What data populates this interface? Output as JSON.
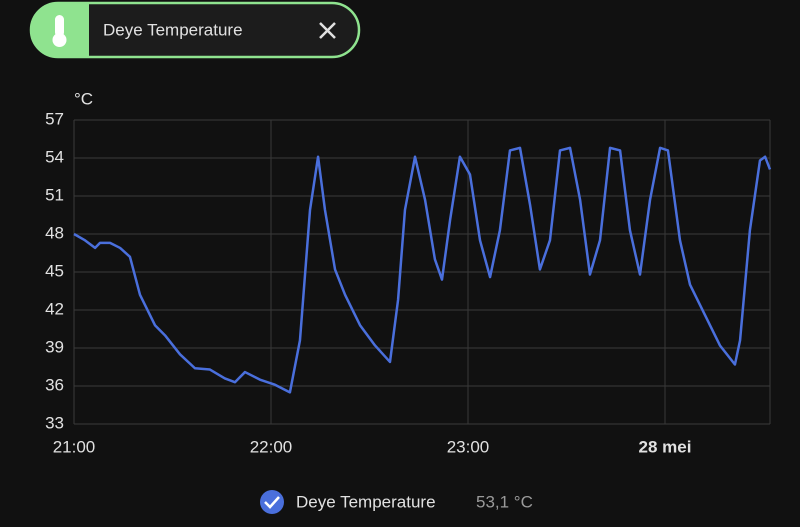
{
  "chip": {
    "label": "Deye Temperature"
  },
  "chart_data": {
    "type": "line",
    "y_label": "°C",
    "x": [
      21.0,
      21.056,
      21.107,
      21.132,
      21.183,
      21.234,
      21.284,
      21.335,
      21.411,
      21.462,
      21.538,
      21.614,
      21.69,
      21.766,
      21.817,
      21.868,
      21.944,
      22.02,
      22.096,
      22.147,
      22.198,
      22.239,
      22.274,
      22.325,
      22.376,
      22.452,
      22.528,
      22.604,
      22.645,
      22.68,
      22.731,
      22.782,
      22.832,
      22.868,
      22.909,
      22.959,
      23.01,
      23.061,
      23.112,
      23.162,
      23.213,
      23.264,
      23.315,
      23.365,
      23.416,
      23.467,
      23.518,
      23.569,
      23.619,
      23.67,
      23.721,
      23.772,
      23.822,
      23.873,
      23.924,
      23.975,
      24.015,
      24.076,
      24.127,
      24.203,
      24.279,
      24.355,
      24.381,
      24.431,
      24.482,
      24.508,
      24.533
    ],
    "series": [
      {
        "name": "Deye Temperature",
        "color": "#4a6fdc",
        "current_value": "53,1 °C",
        "values": [
          48.0,
          47.5,
          46.9,
          47.3,
          47.3,
          46.9,
          46.2,
          43.2,
          40.8,
          40.0,
          38.5,
          37.4,
          37.3,
          36.6,
          36.3,
          37.1,
          36.5,
          36.1,
          35.5,
          39.6,
          49.9,
          54.1,
          49.9,
          45.2,
          43.2,
          40.8,
          39.2,
          37.9,
          42.8,
          49.9,
          54.1,
          50.7,
          46.0,
          44.4,
          49.1,
          54.1,
          52.7,
          47.5,
          44.6,
          48.3,
          54.6,
          54.8,
          50.3,
          45.2,
          47.5,
          54.6,
          54.8,
          50.7,
          44.8,
          47.5,
          54.8,
          54.6,
          48.3,
          44.8,
          50.7,
          54.8,
          54.6,
          47.5,
          44.0,
          41.6,
          39.2,
          37.7,
          39.6,
          48.3,
          53.8,
          54.1,
          53.1
        ]
      }
    ],
    "xlim": [
      21,
      24.533
    ],
    "xticks": [
      {
        "value": 21,
        "label": "21:00"
      },
      {
        "value": 22,
        "label": "22:00"
      },
      {
        "value": 23,
        "label": "23:00"
      },
      {
        "value": 24,
        "label": "28 mei"
      }
    ],
    "ylim": [
      33,
      57
    ],
    "yticks": [
      33,
      36,
      39,
      42,
      45,
      48,
      51,
      54,
      57
    ],
    "grid": true
  }
}
